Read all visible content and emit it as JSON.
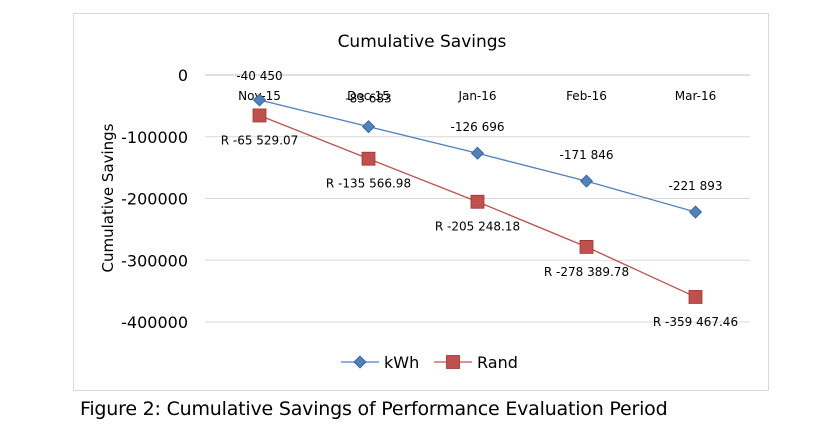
{
  "caption": "Figure 2: Cumulative Savings of Performance Evaluation Period",
  "chart_data": {
    "type": "line",
    "title": "Cumulative Savings",
    "xlabel": "",
    "ylabel": "Cumulative Savings",
    "categories": [
      "Nov-15",
      "Dec-15",
      "Jan-16",
      "Feb-16",
      "Mar-16"
    ],
    "ylim": [
      -400000,
      0
    ],
    "yticks": [
      0,
      -100000,
      -200000,
      -300000,
      -400000
    ],
    "ytick_labels": [
      "0",
      "-100000",
      "-200000",
      "-300000",
      "-400000"
    ],
    "x_axis_position": "top",
    "grid": true,
    "legend_position": "bottom",
    "series": [
      {
        "name": "kWh",
        "color": "#4f81bd",
        "marker": "diamond",
        "values": [
          -40450,
          -83683,
          -126696,
          -171846,
          -221893
        ],
        "labels": [
          "-40 450",
          "-83 683",
          "-126 696",
          "-171 846",
          "-221 893"
        ]
      },
      {
        "name": "Rand",
        "color": "#c0504d",
        "marker": "square",
        "values": [
          -65529.07,
          -135566.98,
          -205248.18,
          -278389.78,
          -359467.46
        ],
        "labels": [
          "R -65 529.07",
          "R -135 566.98",
          "R -205 248.18",
          "R -278 389.78",
          "R -359 467.46"
        ]
      }
    ]
  }
}
